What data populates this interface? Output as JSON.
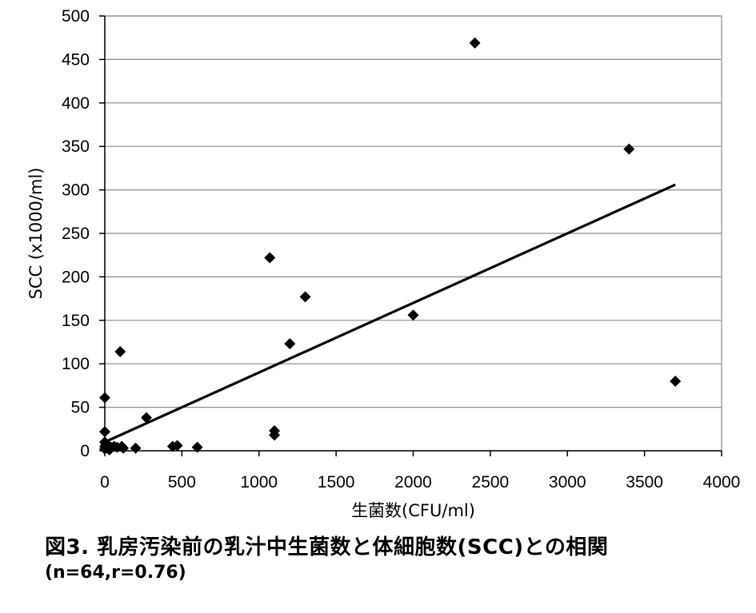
{
  "chart_data": {
    "type": "scatter",
    "title": "",
    "xlabel": "生菌数(CFU/ml)",
    "ylabel": "SCC (x1000/ml)",
    "xlim": [
      0,
      4000
    ],
    "ylim": [
      0,
      500
    ],
    "xticks": [
      0,
      500,
      1000,
      1500,
      2000,
      2500,
      3000,
      3500,
      4000
    ],
    "yticks": [
      0,
      50,
      100,
      150,
      200,
      250,
      300,
      350,
      400,
      450,
      500
    ],
    "grid": "horizontal",
    "legend": "none",
    "marker_color": "#000000",
    "trendline_color": "#000000",
    "points": [
      {
        "x": 2400,
        "y": 469
      },
      {
        "x": 3400,
        "y": 347
      },
      {
        "x": 1070,
        "y": 222
      },
      {
        "x": 1300,
        "y": 177
      },
      {
        "x": 2000,
        "y": 156
      },
      {
        "x": 1200,
        "y": 123
      },
      {
        "x": 100,
        "y": 114
      },
      {
        "x": 3700,
        "y": 80
      },
      {
        "x": 0,
        "y": 61
      },
      {
        "x": 270,
        "y": 38
      },
      {
        "x": 1100,
        "y": 23
      },
      {
        "x": 0,
        "y": 22
      },
      {
        "x": 1100,
        "y": 18
      },
      {
        "x": 0,
        "y": 10
      },
      {
        "x": 10,
        "y": 7
      },
      {
        "x": 0,
        "y": 5
      },
      {
        "x": 20,
        "y": 3
      },
      {
        "x": 40,
        "y": 4
      },
      {
        "x": 60,
        "y": 5
      },
      {
        "x": 80,
        "y": 4
      },
      {
        "x": 110,
        "y": 5
      },
      {
        "x": 120,
        "y": 3
      },
      {
        "x": 200,
        "y": 3
      },
      {
        "x": 440,
        "y": 5
      },
      {
        "x": 470,
        "y": 6
      },
      {
        "x": 600,
        "y": 4
      },
      {
        "x": 0,
        "y": 2
      },
      {
        "x": 30,
        "y": 1
      }
    ],
    "trendline": {
      "x": [
        0,
        3700
      ],
      "y": [
        10,
        306
      ]
    }
  },
  "caption": {
    "title": "図3. 乳房汚染前の乳汁中生菌数と体細胞数(SCC)との相関",
    "subtitle": "(n=64,r=0.76)"
  }
}
